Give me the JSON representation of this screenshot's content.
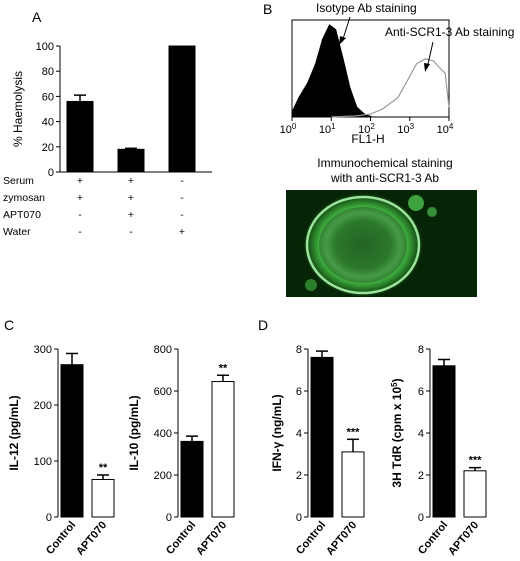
{
  "panels": {
    "A": {
      "letter": "A"
    },
    "B": {
      "letter": "B",
      "isotype_label": "Isotype Ab staining",
      "anti_label": "Anti-SCR1-3 Ab staining",
      "xlabel": "FL1-H",
      "micro_title_1": "Immunochemical staining",
      "micro_title_2": "with anti-SCR1-3 Ab"
    },
    "C": {
      "letter": "C"
    },
    "D": {
      "letter": "D"
    }
  },
  "chart_data": [
    {
      "id": "A",
      "type": "bar",
      "ylabel": "% Haemolysis",
      "ylim": [
        0,
        100
      ],
      "yticks": [
        0,
        20,
        40,
        60,
        80,
        100
      ],
      "values": [
        56,
        18,
        100
      ],
      "errors": [
        5,
        0.8,
        0
      ],
      "fill": [
        "#000000",
        "#000000",
        "#000000"
      ],
      "conditions": [
        {
          "name": "Serum",
          "marks": [
            "+",
            "+",
            "-"
          ]
        },
        {
          "name": "zymosan",
          "marks": [
            "+",
            "+",
            "-"
          ]
        },
        {
          "name": "APT070",
          "marks": [
            "-",
            "+",
            "-"
          ]
        },
        {
          "name": "Water",
          "marks": [
            "-",
            "-",
            "+"
          ]
        }
      ]
    },
    {
      "id": "B-histogram",
      "type": "area",
      "xlabel": "FL1-H",
      "xscale": "log",
      "xticks": [
        "10",
        "10",
        "10",
        "10",
        "10"
      ],
      "xtick_exponents": [
        "0",
        "1",
        "2",
        "3",
        "4"
      ],
      "xlim": [
        1,
        10000
      ],
      "series": [
        {
          "name": "Isotype Ab staining",
          "style": "filled",
          "color": "#000000",
          "x": [
            1,
            1.5,
            2.5,
            4,
            6,
            9,
            13,
            20,
            30,
            45,
            70,
            110
          ],
          "y": [
            0.05,
            0.2,
            0.35,
            0.55,
            0.8,
            0.95,
            0.9,
            0.6,
            0.3,
            0.1,
            0.03,
            0
          ]
        },
        {
          "name": "Anti-SCR1-3 Ab staining",
          "style": "line",
          "color": "#999999",
          "x": [
            10,
            40,
            100,
            200,
            500,
            1000,
            1500,
            2500,
            4000,
            6000,
            8000,
            10000
          ],
          "y": [
            0,
            0.01,
            0.03,
            0.08,
            0.2,
            0.42,
            0.55,
            0.6,
            0.58,
            0.5,
            0.45,
            0.1
          ]
        }
      ]
    },
    {
      "id": "C-IL12",
      "type": "bar",
      "ylabel": "IL-12 (pg/mL)",
      "ylim": [
        0,
        300
      ],
      "yticks": [
        0,
        100,
        200,
        300
      ],
      "categories": [
        "Control",
        "APT070"
      ],
      "values": [
        272,
        67
      ],
      "errors": [
        20,
        8
      ],
      "fill": [
        "#000000",
        "#ffffff"
      ],
      "significance": [
        "",
        "**"
      ]
    },
    {
      "id": "C-IL10",
      "type": "bar",
      "ylabel": "IL-10 (pg/mL)",
      "ylim": [
        0,
        800
      ],
      "yticks": [
        0,
        200,
        400,
        600,
        800
      ],
      "categories": [
        "Control",
        "APT070"
      ],
      "values": [
        360,
        645
      ],
      "errors": [
        25,
        30
      ],
      "fill": [
        "#000000",
        "#ffffff"
      ],
      "significance": [
        "",
        "**"
      ]
    },
    {
      "id": "D-IFN",
      "type": "bar",
      "ylabel": "IFN-γ (ng/mL)",
      "ylim": [
        0,
        8
      ],
      "yticks": [
        0,
        2,
        4,
        6,
        8
      ],
      "categories": [
        "Control",
        "APT070"
      ],
      "values": [
        7.6,
        3.1
      ],
      "errors": [
        0.3,
        0.6
      ],
      "fill": [
        "#000000",
        "#ffffff"
      ],
      "significance": [
        "",
        "***"
      ]
    },
    {
      "id": "D-3H",
      "type": "bar",
      "ylabel": "3H TdR (cpm x 10",
      "ylabel_sup": "5",
      "ylabel_end": ")",
      "ylim": [
        0,
        8
      ],
      "yticks": [
        0,
        2,
        4,
        6,
        8
      ],
      "categories": [
        "Control",
        "APT070"
      ],
      "values": [
        7.2,
        2.2
      ],
      "errors": [
        0.3,
        0.15
      ],
      "fill": [
        "#000000",
        "#ffffff"
      ],
      "significance": [
        "",
        "***"
      ]
    }
  ]
}
